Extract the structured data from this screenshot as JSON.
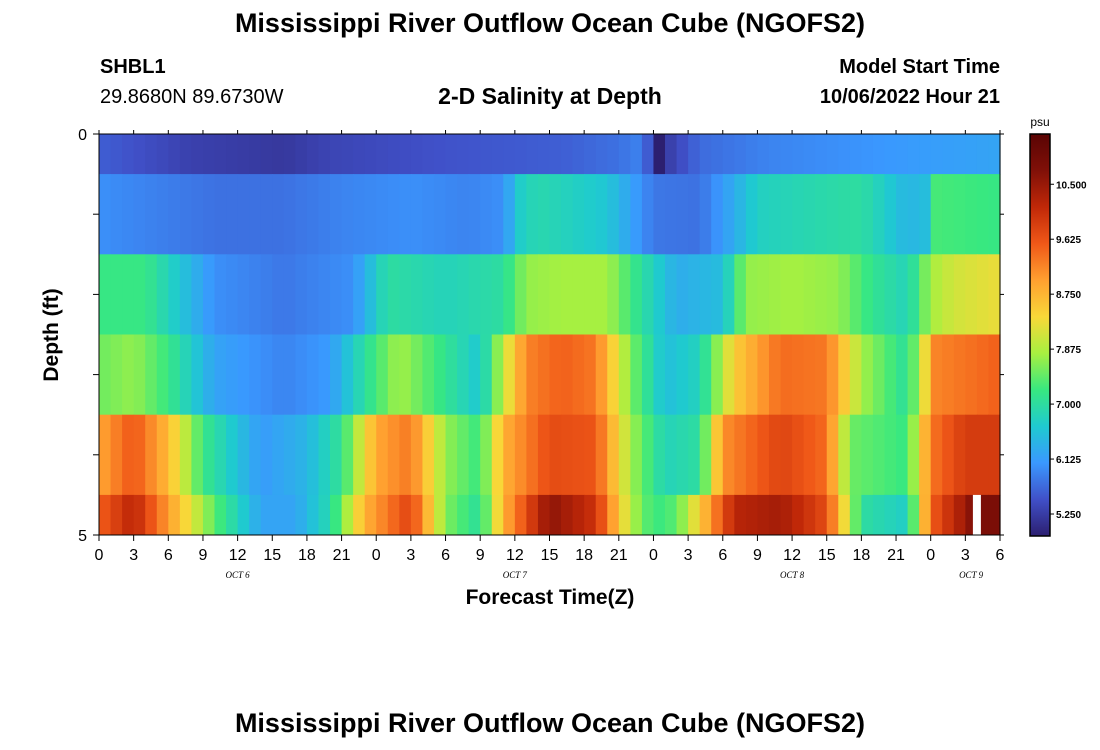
{
  "page": {
    "title_top": "Mississippi River Outflow Ocean Cube (NGOFS2)",
    "title_bottom": "Mississippi River Outflow Ocean Cube (NGOFS2)",
    "station": "SHBL1",
    "coords": "29.8680N  89.6730W",
    "model_start_label": "Model Start Time",
    "model_start_value": "10/06/2022 Hour 21"
  },
  "colors": {
    "scale": [
      "#2c1f70",
      "#4050c8",
      "#3a98ff",
      "#1fcad0",
      "#38e880",
      "#a8f040",
      "#f8d838",
      "#ffa030",
      "#f05818",
      "#c02808",
      "#801008",
      "#5a0404"
    ]
  },
  "chart_data": {
    "type": "heatmap",
    "title": "2-D Salinity at Depth",
    "xlabel": "Forecast Time(Z)",
    "ylabel": "Depth (ft)",
    "colorbar_label": "psu",
    "colorbar_ticks": [
      "10.500",
      "9.625",
      "8.750",
      "7.875",
      "7.000",
      "6.125",
      "5.250"
    ],
    "colorbar_tick_values": [
      10.5,
      9.625,
      8.75,
      7.875,
      7.0,
      6.125,
      5.25
    ],
    "colorbar_range": [
      4.9,
      11.3
    ],
    "x_range": [
      0,
      78
    ],
    "x_tick_values": [
      0,
      3,
      6,
      9,
      12,
      15,
      18,
      21,
      24,
      27,
      30,
      33,
      36,
      39,
      42,
      45,
      48,
      51,
      54,
      57,
      60,
      63,
      66,
      69,
      72,
      75,
      78
    ],
    "x_tick_labels": [
      "0",
      "3",
      "6",
      "9",
      "12",
      "15",
      "18",
      "21",
      "0",
      "3",
      "6",
      "9",
      "12",
      "15",
      "18",
      "21",
      "0",
      "3",
      "6",
      "9",
      "12",
      "15",
      "18",
      "21",
      "0",
      "3",
      "6"
    ],
    "day_labels": [
      "OCT 6",
      "OCT 7",
      "OCT 8",
      "OCT 9"
    ],
    "day_label_hours": [
      12,
      36,
      60,
      75.5
    ],
    "y_range": [
      0,
      5
    ],
    "y_tick_labels": [
      "0",
      "5"
    ],
    "y_tick_values": [
      0,
      5
    ],
    "layer_depth_edges": [
      0,
      0.5,
      1.5,
      2.5,
      3.5,
      4.5,
      5
    ],
    "layers": [
      {
        "name": "surface",
        "points": [
          [
            0,
            5.6
          ],
          [
            8,
            5.3
          ],
          [
            16,
            5.2
          ],
          [
            20,
            5.35
          ],
          [
            30,
            5.5
          ],
          [
            40,
            5.6
          ],
          [
            45,
            5.75
          ],
          [
            47,
            5.9
          ],
          [
            48,
            5.25
          ],
          [
            48.5,
            4.9
          ],
          [
            49.5,
            5.3
          ],
          [
            52,
            5.7
          ],
          [
            58,
            5.9
          ],
          [
            70,
            6.1
          ],
          [
            78,
            6.2
          ]
        ]
      },
      {
        "name": "layer-1",
        "points": [
          [
            0,
            6.0
          ],
          [
            4,
            5.9
          ],
          [
            10,
            5.75
          ],
          [
            16,
            5.75
          ],
          [
            21,
            5.9
          ],
          [
            27,
            6.0
          ],
          [
            32,
            5.9
          ],
          [
            35,
            6.0
          ],
          [
            36.5,
            6.7
          ],
          [
            38,
            6.9
          ],
          [
            44,
            6.6
          ],
          [
            48,
            5.8
          ],
          [
            52,
            5.75
          ],
          [
            55,
            6.3
          ],
          [
            57,
            6.75
          ],
          [
            62,
            6.9
          ],
          [
            66,
            7.0
          ],
          [
            70,
            6.4
          ],
          [
            71.5,
            6.5
          ],
          [
            72.5,
            7.3
          ],
          [
            78,
            7.2
          ]
        ]
      },
      {
        "name": "layer-2",
        "points": [
          [
            0,
            7.2
          ],
          [
            4,
            7.2
          ],
          [
            10,
            6.0
          ],
          [
            16,
            5.8
          ],
          [
            22,
            6.0
          ],
          [
            25,
            7.0
          ],
          [
            30,
            6.8
          ],
          [
            35,
            7.0
          ],
          [
            37,
            7.7
          ],
          [
            40,
            7.8
          ],
          [
            44,
            7.8
          ],
          [
            47,
            7.0
          ],
          [
            50,
            6.3
          ],
          [
            54,
            6.5
          ],
          [
            56,
            7.7
          ],
          [
            60,
            7.8
          ],
          [
            64,
            7.7
          ],
          [
            67,
            7.1
          ],
          [
            70,
            6.8
          ],
          [
            72,
            7.8
          ],
          [
            74,
            8.1
          ],
          [
            78,
            8.3
          ]
        ]
      },
      {
        "name": "layer-3",
        "points": [
          [
            0,
            7.5
          ],
          [
            3,
            7.7
          ],
          [
            6,
            7.2
          ],
          [
            10,
            6.2
          ],
          [
            16,
            5.9
          ],
          [
            20,
            6.1
          ],
          [
            23,
            7.0
          ],
          [
            26,
            7.8
          ],
          [
            30,
            7.1
          ],
          [
            33,
            6.6
          ],
          [
            35,
            8.0
          ],
          [
            37,
            9.2
          ],
          [
            40,
            9.5
          ],
          [
            43,
            9.3
          ],
          [
            46,
            7.6
          ],
          [
            49,
            6.5
          ],
          [
            52,
            6.8
          ],
          [
            55,
            8.5
          ],
          [
            59,
            9.4
          ],
          [
            63,
            9.3
          ],
          [
            66,
            7.8
          ],
          [
            70,
            7.0
          ],
          [
            72.5,
            9.2
          ],
          [
            78,
            9.5
          ]
        ]
      },
      {
        "name": "layer-4",
        "points": [
          [
            0,
            8.9
          ],
          [
            3,
            9.6
          ],
          [
            6,
            8.7
          ],
          [
            9,
            7.2
          ],
          [
            14,
            6.1
          ],
          [
            18,
            6.4
          ],
          [
            21,
            7.1
          ],
          [
            24,
            8.9
          ],
          [
            27,
            9.3
          ],
          [
            30,
            7.7
          ],
          [
            33,
            7.2
          ],
          [
            35,
            8.8
          ],
          [
            39,
            9.7
          ],
          [
            43,
            9.6
          ],
          [
            46,
            7.8
          ],
          [
            49,
            6.8
          ],
          [
            52,
            7.0
          ],
          [
            54,
            9.1
          ],
          [
            59,
            9.8
          ],
          [
            63,
            9.4
          ],
          [
            65,
            7.5
          ],
          [
            70,
            7.2
          ],
          [
            72,
            9.3
          ],
          [
            75,
            9.9
          ],
          [
            78,
            9.9
          ]
        ]
      },
      {
        "name": "bottom",
        "points": [
          [
            0,
            9.5
          ],
          [
            3,
            10.2
          ],
          [
            7,
            8.6
          ],
          [
            10,
            7.4
          ],
          [
            14,
            6.2
          ],
          [
            17,
            6.2
          ],
          [
            20,
            6.9
          ],
          [
            23,
            8.8
          ],
          [
            27,
            9.8
          ],
          [
            30,
            7.6
          ],
          [
            33,
            7.0
          ],
          [
            35,
            8.8
          ],
          [
            39,
            10.6
          ],
          [
            43,
            10.0
          ],
          [
            46,
            7.9
          ],
          [
            48,
            7.2
          ],
          [
            50,
            7.4
          ],
          [
            52,
            8.5
          ],
          [
            55,
            10.2
          ],
          [
            59,
            10.4
          ],
          [
            63,
            9.7
          ],
          [
            66,
            7.0
          ],
          [
            70,
            6.7
          ],
          [
            72,
            9.5
          ],
          [
            76,
            10.8
          ],
          [
            78,
            10.8
          ]
        ]
      }
    ],
    "marker": {
      "x": 76,
      "depth_from": 4.5,
      "depth_to": 5
    }
  }
}
